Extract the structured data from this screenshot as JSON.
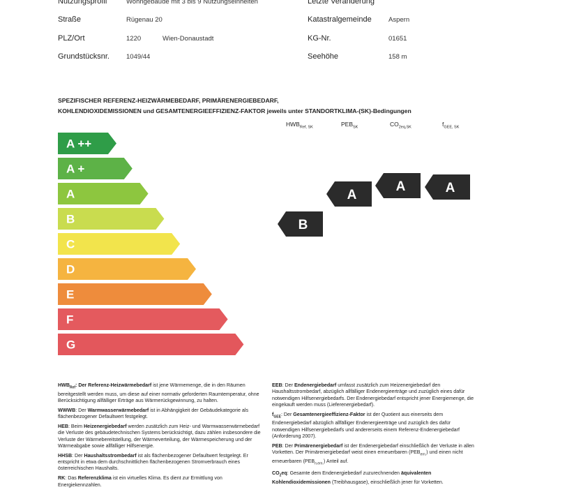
{
  "info": {
    "rows": [
      {
        "left": [
          "Nutzungsprofil",
          "Wohngebäude mit 3 bis 9 Nutzungseinheiten"
        ],
        "right": [
          "Letzte Veränderung"
        ]
      },
      {
        "left": [
          "Straße",
          "Rügenau 20"
        ],
        "right": [
          "Katastralgemeinde",
          "Aspern"
        ]
      },
      {
        "left": [
          "PLZ/Ort",
          "1220",
          "Wien-Donaustadt"
        ],
        "right": [
          "KG-Nr.",
          "01651"
        ]
      },
      {
        "left": [
          "Grundstücksnr.",
          "1049/44"
        ],
        "right": [
          "Seehöhe",
          "158 m"
        ]
      }
    ]
  },
  "heading": {
    "lines": [
      "SPEZIFISCHER REFERENZ-HEIZWÄRMEBEDARF, PRIMÄRENERGIEBEDARF,",
      "KOHLENDIOXIDEMISSIONEN und GESAMTENERGIEEFFIZIENZ-FAKTOR jeweils unter STANDORTKLIMA-(SK)-Bedingungen"
    ]
  },
  "scale": {
    "classes": [
      {
        "label": "A ++",
        "color": "#2f9d48"
      },
      {
        "label": "A +",
        "color": "#5db247"
      },
      {
        "label": "A",
        "color": "#8dc63f"
      },
      {
        "label": "B",
        "color": "#c9dc4f"
      },
      {
        "label": "C",
        "color": "#f2e44c"
      },
      {
        "label": "D",
        "color": "#f5b440"
      },
      {
        "label": "E",
        "color": "#ee8c3c"
      },
      {
        "label": "F",
        "color": "#e45a5e"
      },
      {
        "label": "G",
        "color": "#e3575c"
      }
    ]
  },
  "indicators": [
    {
      "name": "HWB",
      "sub": "Ref, SK",
      "rating": "B"
    },
    {
      "name": "PEB",
      "sub": "SK",
      "rating": "A"
    },
    {
      "name": "CO",
      "sub": "2eq,SK",
      "rating": "A"
    },
    {
      "name": "f",
      "sub": "GEE, SK",
      "rating": "A"
    }
  ],
  "legend": {
    "left": [
      {
        "parts": [
          {
            "t": "HWB",
            "b": true
          },
          {
            "t": "Ref",
            "b": true,
            "s": true
          },
          {
            "t": ": Der ",
            "b": true
          },
          {
            "t": "Referenz-Heizwärmebedarf",
            "b": true
          },
          {
            "t": " ist jene Wärmemenge, die in den Räumen bereitgestellt werden muss, um diese auf einer normativ geforderten Raumtemperatur, ohne Berücksichtigung allfälliger Erträge aus Wärmerückgewinnung, zu halten."
          }
        ]
      },
      {
        "parts": [
          {
            "t": "WWWB",
            "b": true
          },
          {
            "t": ": Der "
          },
          {
            "t": "Warmwasserwärmebedarf",
            "b": true
          },
          {
            "t": " ist in Abhängigkeit der Gebäudekategorie als flächenbezogener Defaultwert festgelegt."
          }
        ]
      },
      {
        "parts": [
          {
            "t": "HEB",
            "b": true
          },
          {
            "t": ": Beim "
          },
          {
            "t": "Heizenergiebedarf",
            "b": true
          },
          {
            "t": " werden zusätzlich zum Heiz- und Warmwasserwärmebedarf die Verluste des gebäudetechnischen Systems berücksichtigt, dazu zählen insbesondere die Verluste der Wärmebereitstellung, der Wärmeverteilung, der Wärmespeicherung und der Wärmeabgabe sowie allfälliger Hilfsenergie."
          }
        ]
      },
      {
        "parts": [
          {
            "t": "HHSB",
            "b": true
          },
          {
            "t": ": Der "
          },
          {
            "t": "Haushaltsstrombedarf",
            "b": true
          },
          {
            "t": " ist als flächenbezogener Defaultwert festgelegt. Er entspricht in etwa dem durchschnittlichen flächenbezogenen Stromverbrauch eines österreichischen Haushalts."
          }
        ]
      },
      {
        "parts": [
          {
            "t": "RK",
            "b": true
          },
          {
            "t": ": Das "
          },
          {
            "t": "Referenzklima",
            "b": true
          },
          {
            "t": " ist ein virtuelles Klima. Es dient zur Ermittlung von Energiekennzahlen."
          }
        ]
      }
    ],
    "right": [
      {
        "parts": [
          {
            "t": "EEB",
            "b": true
          },
          {
            "t": ": Der "
          },
          {
            "t": "Endenergiebedarf",
            "b": true
          },
          {
            "t": " umfasst zusätzlich zum Heizenergiebedarf den Haushaltsstrombedarf, abzüglich allfälliger Endenergieerträge und zuzüglich eines dafür notwendigen Hilfsenergiebedarfs. Der Endenergiebedarf entspricht jener Energiemenge, die eingekauft werden muss (Lieferenergiebedarf)."
          }
        ]
      },
      {
        "parts": [
          {
            "t": "f",
            "b": true
          },
          {
            "t": "GEE",
            "b": true,
            "s": true
          },
          {
            "t": ": Der "
          },
          {
            "t": "Gesamtenergieeffizienz-Faktor",
            "b": true
          },
          {
            "t": " ist der Quotient aus einerseits dem Endenergiebedarf abzüglich allfälliger Endenergieerträge und zuzüglich des dafür notwendigen Hilfsenergiebedarfs und andererseits einem Referenz-Endenergiebedarf (Anforderung 2007)."
          }
        ]
      },
      {
        "parts": [
          {
            "t": "PEB",
            "b": true
          },
          {
            "t": ": Der "
          },
          {
            "t": "Primärenergiebedarf",
            "b": true
          },
          {
            "t": " ist der Endenergiebedarf einschließlich der Verluste in allen Vorketten. Der Primärenergiebedarf weist einen erneuerbaren (PEB"
          },
          {
            "t": "ern.",
            "s": true
          },
          {
            "t": ") und einen nicht erneuerbaren (PEB"
          },
          {
            "t": "n.ern.",
            "s": true
          },
          {
            "t": ") Anteil auf."
          }
        ]
      },
      {
        "parts": [
          {
            "t": "CO",
            "b": true
          },
          {
            "t": "2",
            "b": true,
            "s": true
          },
          {
            "t": "eq",
            "b": true
          },
          {
            "t": ": Gesamte dem Endenergiebedarf zuzurechnenden "
          },
          {
            "t": "äquivalenten Kohlendioxidemissionen",
            "b": true
          },
          {
            "t": " (Treibhausgase), einschließlich jener für Vorketten."
          }
        ]
      }
    ]
  }
}
